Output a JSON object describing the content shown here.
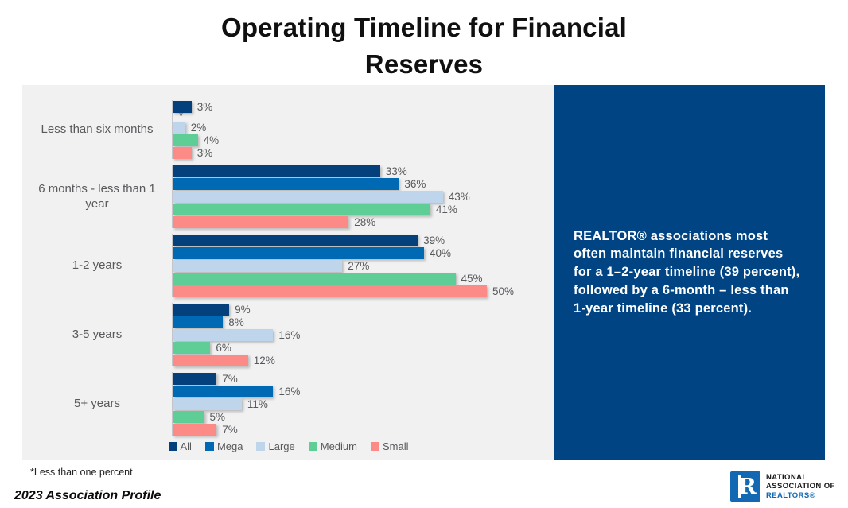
{
  "title": "Operating Timeline for Financial Reserves",
  "callout": {
    "text": "REALTOR® associations most often maintain financial reserves for a 1–2-year timeline (39 percent), followed by a 6-month – less than 1-year timeline (33 percent).",
    "background": "#004483"
  },
  "chart_data": {
    "type": "bar",
    "orientation": "horizontal-grouped",
    "title": "Operating Timeline for Financial Reserves",
    "categories": [
      "Less than six months",
      "6 months - less than 1 year",
      "1-2 years",
      "3-5 years",
      "5+ years"
    ],
    "series": [
      {
        "name": "All",
        "color": "#04407c",
        "values": [
          3,
          33,
          39,
          9,
          7
        ]
      },
      {
        "name": "Mega",
        "color": "#0069b4",
        "values": [
          null,
          36,
          40,
          8,
          16
        ]
      },
      {
        "name": "Large",
        "color": "#bfd5eb",
        "values": [
          2,
          43,
          27,
          16,
          11
        ]
      },
      {
        "name": "Medium",
        "color": "#5ecd96",
        "values": [
          4,
          41,
          45,
          6,
          5
        ]
      },
      {
        "name": "Small",
        "color": "#fc8b87",
        "values": [
          3,
          28,
          50,
          12,
          7
        ]
      }
    ],
    "value_suffix": "%",
    "null_marker": "*",
    "footnote": "*Less than one percent",
    "xlim": [
      0,
      50
    ],
    "legend_position": "bottom",
    "grid": false,
    "panel_background": "#f1f1f2"
  },
  "footer": {
    "source": "2023 Association Profile",
    "logo": {
      "mark_letter": "R",
      "line1": "NATIONAL",
      "line2": "ASSOCIATION OF",
      "line3": "REALTORS®"
    }
  }
}
